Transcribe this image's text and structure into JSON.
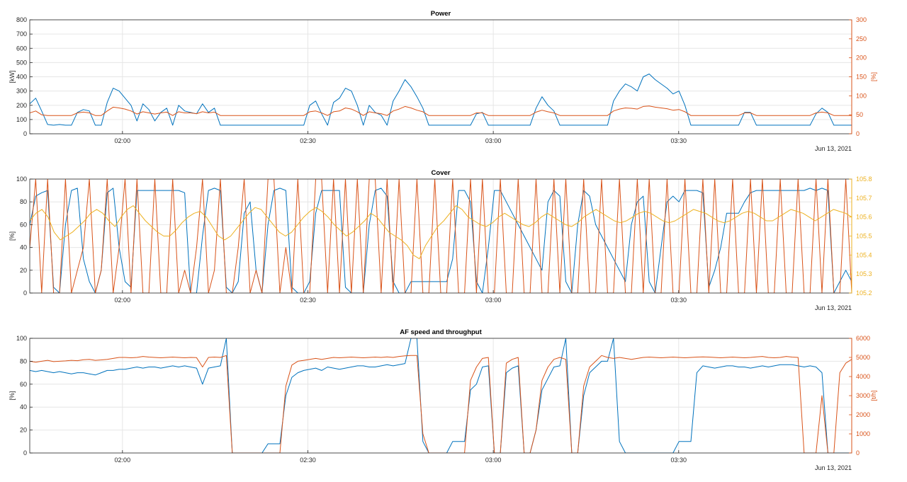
{
  "colors": {
    "blue": "#0072BD",
    "orange": "#D95319",
    "yellow": "#EDB120",
    "axis": "#262626",
    "grid": "#e6e6e6"
  },
  "chart_data": [
    {
      "type": "line",
      "title": "Power",
      "ylabel_left": "[kW]",
      "ylabel_right": "[%]",
      "date_label": "Jun 13, 2021",
      "x_axis": {
        "start": "01:45",
        "end": "03:58",
        "ticks": [
          "02:00",
          "02:30",
          "03:00",
          "03:30"
        ]
      },
      "yaxis_left": {
        "min": 0,
        "max": 800,
        "ticks": [
          0,
          100,
          200,
          300,
          400,
          500,
          600,
          700,
          800
        ]
      },
      "yaxis_right": {
        "min": 0,
        "max": 300,
        "ticks": [
          0,
          50,
          100,
          150,
          200,
          250,
          300
        ]
      },
      "grid": true,
      "series": [
        {
          "axis": "left",
          "color": "blue",
          "step": "1min",
          "values": [
            210,
            250,
            160,
            65,
            60,
            65,
            60,
            60,
            150,
            170,
            160,
            60,
            60,
            220,
            320,
            300,
            250,
            200,
            90,
            210,
            170,
            90,
            150,
            180,
            60,
            200,
            160,
            150,
            140,
            210,
            150,
            180,
            60,
            60,
            60,
            60,
            60,
            60,
            60,
            60,
            60,
            60,
            60,
            60,
            60,
            60,
            60,
            200,
            230,
            140,
            60,
            220,
            250,
            320,
            300,
            200,
            60,
            200,
            150,
            130,
            60,
            230,
            300,
            380,
            330,
            260,
            180,
            60,
            60,
            60,
            60,
            60,
            60,
            60,
            60,
            140,
            150,
            60,
            60,
            60,
            60,
            60,
            60,
            60,
            60,
            180,
            260,
            200,
            160,
            60,
            60,
            60,
            60,
            60,
            60,
            60,
            60,
            60,
            230,
            300,
            350,
            330,
            300,
            400,
            420,
            380,
            350,
            320,
            280,
            300,
            200,
            60,
            60,
            60,
            60,
            60,
            60,
            60,
            60,
            60,
            150,
            150,
            60,
            60,
            60,
            60,
            60,
            60,
            60,
            60,
            60,
            60,
            140,
            180,
            150,
            60,
            60,
            60,
            60
          ]
        },
        {
          "axis": "right",
          "color": "orange",
          "step": "1min",
          "values": [
            55,
            60,
            50,
            48,
            48,
            48,
            48,
            48,
            55,
            57,
            55,
            48,
            48,
            60,
            70,
            68,
            65,
            60,
            52,
            58,
            55,
            52,
            55,
            57,
            48,
            58,
            55,
            55,
            53,
            58,
            55,
            57,
            48,
            48,
            48,
            48,
            48,
            48,
            48,
            48,
            48,
            48,
            48,
            48,
            48,
            48,
            48,
            58,
            60,
            55,
            48,
            58,
            60,
            68,
            65,
            58,
            48,
            58,
            55,
            53,
            48,
            60,
            65,
            72,
            68,
            62,
            58,
            48,
            48,
            48,
            48,
            48,
            48,
            48,
            48,
            55,
            55,
            48,
            48,
            48,
            48,
            48,
            48,
            48,
            48,
            57,
            62,
            58,
            55,
            48,
            48,
            48,
            48,
            48,
            48,
            48,
            48,
            48,
            60,
            65,
            68,
            67,
            65,
            72,
            73,
            70,
            68,
            66,
            62,
            64,
            58,
            48,
            48,
            48,
            48,
            48,
            48,
            48,
            48,
            48,
            55,
            55,
            48,
            48,
            48,
            48,
            48,
            48,
            48,
            48,
            48,
            48,
            55,
            57,
            55,
            48,
            48,
            48,
            48
          ]
        }
      ]
    },
    {
      "type": "line",
      "title": "Cover",
      "ylabel_left": "[%]",
      "ylabel_right": "",
      "date_label": "Jun 13, 2021",
      "x_axis": {
        "start": "01:45",
        "end": "03:58",
        "ticks": [
          "02:00",
          "02:30",
          "03:00",
          "03:30"
        ]
      },
      "yaxis_left": {
        "min": 0,
        "max": 100,
        "ticks": [
          0,
          20,
          40,
          60,
          80,
          100
        ]
      },
      "yaxis_right": {
        "min": 105.2,
        "max": 105.8,
        "ticks": [
          105.2,
          105.3,
          105.4,
          105.5,
          105.6,
          105.7,
          105.8
        ]
      },
      "grid": true,
      "series": [
        {
          "axis": "left",
          "color": "blue",
          "step": "1min",
          "values": [
            60,
            85,
            88,
            90,
            5,
            0,
            60,
            90,
            92,
            30,
            10,
            0,
            20,
            88,
            92,
            40,
            10,
            5,
            90,
            90,
            90,
            90,
            90,
            90,
            90,
            90,
            88,
            0,
            0,
            50,
            90,
            92,
            90,
            5,
            0,
            10,
            70,
            80,
            20,
            0,
            60,
            90,
            92,
            90,
            5,
            0,
            0,
            10,
            70,
            90,
            90,
            90,
            90,
            5,
            0,
            0,
            0,
            60,
            90,
            92,
            85,
            10,
            0,
            0,
            10,
            10,
            10,
            10,
            10,
            10,
            10,
            30,
            90,
            90,
            80,
            10,
            0,
            40,
            90,
            90,
            80,
            70,
            60,
            50,
            40,
            30,
            20,
            80,
            90,
            85,
            10,
            0,
            60,
            90,
            85,
            60,
            50,
            40,
            30,
            20,
            10,
            60,
            80,
            85,
            10,
            0,
            40,
            80,
            85,
            80,
            90,
            90,
            90,
            88,
            5,
            20,
            40,
            70,
            70,
            70,
            80,
            88,
            90,
            90,
            90,
            90,
            90,
            90,
            90,
            90,
            90,
            92,
            90,
            92,
            90,
            0,
            10,
            20,
            10
          ]
        },
        {
          "axis": "left",
          "color": "orange",
          "step": "1min",
          "values": [
            40,
            100,
            0,
            100,
            0,
            0,
            100,
            0,
            20,
            40,
            100,
            0,
            20,
            100,
            0,
            40,
            100,
            0,
            100,
            0,
            0,
            100,
            0,
            0,
            100,
            0,
            20,
            0,
            40,
            100,
            0,
            20,
            100,
            0,
            0,
            40,
            100,
            0,
            20,
            0,
            100,
            100,
            0,
            40,
            0,
            100,
            0,
            0,
            100,
            100,
            0,
            100,
            0,
            100,
            0,
            100,
            0,
            100,
            100,
            0,
            100,
            0,
            100,
            0,
            0,
            100,
            0,
            0,
            100,
            0,
            0,
            100,
            0,
            0,
            100,
            0,
            100,
            0,
            0,
            100,
            0,
            0,
            100,
            0,
            0,
            100,
            0,
            0,
            100,
            0,
            100,
            0,
            0,
            100,
            0,
            0,
            100,
            0,
            0,
            100,
            0,
            0,
            100,
            0,
            100,
            0,
            0,
            100,
            0,
            0,
            100,
            0,
            0,
            100,
            0,
            100,
            0,
            0,
            100,
            0,
            0,
            100,
            0,
            100,
            0,
            0,
            100,
            0,
            0,
            100,
            0,
            0,
            100,
            0,
            100,
            0,
            0,
            100,
            0
          ]
        },
        {
          "axis": "right",
          "color": "yellow",
          "step": "1min",
          "values": [
            105.58,
            105.62,
            105.64,
            105.6,
            105.52,
            105.48,
            105.5,
            105.52,
            105.55,
            105.58,
            105.62,
            105.64,
            105.62,
            105.58,
            105.55,
            105.6,
            105.64,
            105.66,
            105.62,
            105.58,
            105.55,
            105.52,
            105.5,
            105.5,
            105.53,
            105.57,
            105.6,
            105.62,
            105.63,
            105.6,
            105.55,
            105.5,
            105.48,
            105.5,
            105.54,
            105.58,
            105.62,
            105.65,
            105.64,
            105.6,
            105.56,
            105.52,
            105.5,
            105.52,
            105.56,
            105.6,
            105.63,
            105.65,
            105.63,
            105.6,
            105.56,
            105.53,
            105.5,
            105.52,
            105.55,
            105.58,
            105.62,
            105.6,
            105.56,
            105.52,
            105.5,
            105.48,
            105.45,
            105.4,
            105.38,
            105.45,
            105.5,
            105.55,
            105.58,
            105.62,
            105.66,
            105.64,
            105.6,
            105.58,
            105.56,
            105.55,
            105.57,
            105.6,
            105.62,
            105.6,
            105.58,
            105.56,
            105.55,
            105.57,
            105.6,
            105.62,
            105.6,
            105.58,
            105.56,
            105.55,
            105.57,
            105.6,
            105.62,
            105.64,
            105.62,
            105.6,
            105.58,
            105.57,
            105.58,
            105.6,
            105.62,
            105.63,
            105.62,
            105.6,
            105.58,
            105.57,
            105.58,
            105.6,
            105.62,
            105.64,
            105.63,
            105.62,
            105.6,
            105.58,
            105.57,
            105.58,
            105.6,
            105.62,
            105.63,
            105.62,
            105.6,
            105.58,
            105.58,
            105.6,
            105.62,
            105.64,
            105.63,
            105.62,
            105.6,
            105.58,
            105.6,
            105.62,
            105.64,
            105.63,
            105.62,
            105.6
          ]
        }
      ]
    },
    {
      "type": "line",
      "title": "AF speed and throughput",
      "ylabel_left": "[%]",
      "ylabel_right": "[t/h]",
      "date_label": "Jun 13, 2021",
      "x_axis": {
        "start": "01:45",
        "end": "03:58",
        "ticks": [
          "02:00",
          "02:30",
          "03:00",
          "03:30"
        ]
      },
      "yaxis_left": {
        "min": 0,
        "max": 100,
        "ticks": [
          0,
          20,
          40,
          60,
          80,
          100
        ]
      },
      "yaxis_right": {
        "min": 0,
        "max": 6000,
        "ticks": [
          0,
          1000,
          2000,
          3000,
          4000,
          5000,
          6000
        ]
      },
      "grid": true,
      "series": [
        {
          "axis": "left",
          "color": "blue",
          "step": "1min",
          "values": [
            72,
            71,
            72,
            71,
            70,
            71,
            70,
            69,
            70,
            70,
            69,
            68,
            70,
            72,
            72,
            73,
            73,
            74,
            75,
            74,
            75,
            75,
            74,
            75,
            76,
            75,
            76,
            75,
            74,
            60,
            74,
            75,
            76,
            100,
            0,
            0,
            0,
            0,
            0,
            0,
            8,
            8,
            8,
            50,
            66,
            70,
            72,
            73,
            74,
            72,
            75,
            74,
            73,
            74,
            75,
            76,
            76,
            75,
            75,
            76,
            77,
            76,
            77,
            78,
            100,
            100,
            10,
            0,
            0,
            0,
            0,
            10,
            10,
            10,
            55,
            60,
            75,
            76,
            0,
            0,
            70,
            74,
            76,
            0,
            0,
            20,
            55,
            65,
            75,
            76,
            100,
            0,
            0,
            50,
            70,
            75,
            80,
            80,
            100,
            10,
            0,
            0,
            0,
            0,
            0,
            0,
            0,
            0,
            0,
            10,
            10,
            10,
            70,
            76,
            75,
            74,
            75,
            76,
            76,
            75,
            75,
            74,
            75,
            76,
            75,
            76,
            77,
            77,
            77,
            76,
            75,
            76,
            75,
            70,
            0,
            0,
            0,
            0,
            0
          ]
        },
        {
          "axis": "right",
          "color": "orange",
          "step": "1min",
          "values": [
            4800,
            4750,
            4800,
            4850,
            4780,
            4800,
            4820,
            4850,
            4830,
            4880,
            4900,
            4850,
            4870,
            4900,
            4950,
            5000,
            5000,
            4980,
            5000,
            5050,
            5020,
            5000,
            4980,
            5000,
            5020,
            5000,
            4980,
            5000,
            4990,
            4500,
            5000,
            5020,
            5000,
            5100,
            0,
            0,
            0,
            0,
            0,
            0,
            0,
            0,
            0,
            3500,
            4600,
            4800,
            4850,
            4900,
            4950,
            4900,
            4950,
            5000,
            4980,
            5000,
            5020,
            5000,
            4980,
            5000,
            5020,
            5000,
            5030,
            5000,
            5050,
            5080,
            5100,
            5100,
            1000,
            0,
            0,
            0,
            0,
            0,
            0,
            0,
            3800,
            4500,
            4950,
            5000,
            0,
            0,
            4700,
            4900,
            5000,
            0,
            0,
            1200,
            3800,
            4500,
            4900,
            5000,
            4900,
            0,
            0,
            3500,
            4500,
            4800,
            5100,
            5000,
            4950,
            5000,
            4950,
            4900,
            4950,
            5000,
            5020,
            5000,
            4980,
            5000,
            5020,
            5000,
            4980,
            5000,
            5020,
            5030,
            5020,
            5000,
            4980,
            5000,
            5020,
            5000,
            4980,
            5000,
            5030,
            5050,
            5000,
            4980,
            5000,
            5050,
            5020,
            5000,
            0,
            0,
            0,
            3000,
            0,
            0,
            4200,
            4700,
            4900
          ]
        }
      ]
    }
  ]
}
